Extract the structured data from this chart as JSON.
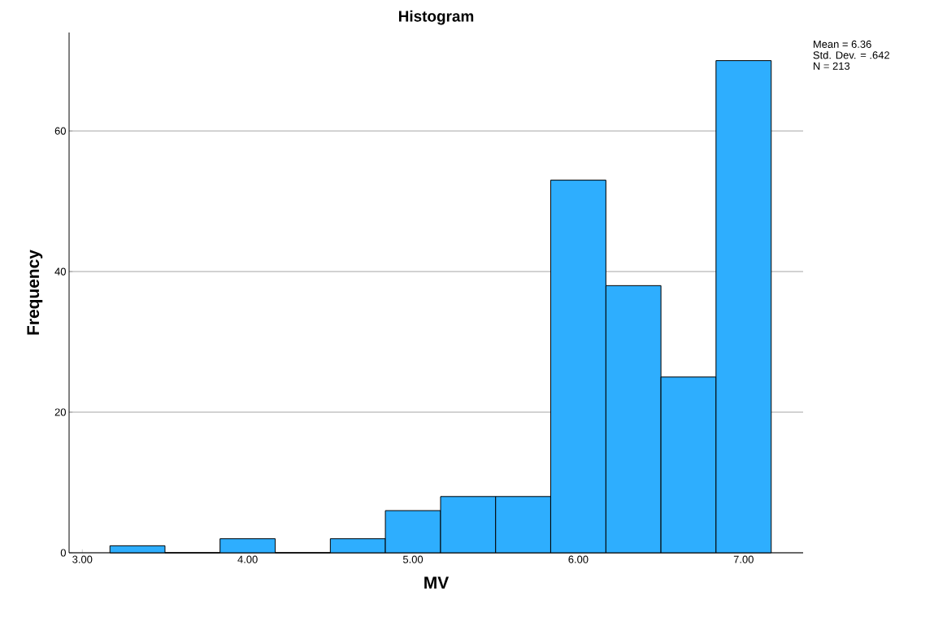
{
  "chart_data": {
    "type": "histogram",
    "title": "Histogram",
    "xlabel": "MV",
    "ylabel": "Frequency",
    "bins": [
      3.167,
      3.5,
      3.833,
      4.167,
      4.5,
      4.833,
      5.167,
      5.5,
      5.833,
      6.167,
      6.5,
      6.833,
      7.167
    ],
    "values": [
      1,
      0,
      2,
      0,
      2,
      6,
      8,
      8,
      53,
      38,
      25,
      70
    ],
    "color": "#2eaefe",
    "xlim": [
      2.92,
      7.36
    ],
    "ylim": [
      0,
      74
    ],
    "xticks": [
      {
        "value": 3,
        "label": "3.00"
      },
      {
        "value": 4,
        "label": "4.00"
      },
      {
        "value": 5,
        "label": "5.00"
      },
      {
        "value": 6,
        "label": "6.00"
      },
      {
        "value": 7,
        "label": "7.00"
      }
    ],
    "yticks": [
      0,
      20,
      40,
      60
    ],
    "grid": "y",
    "annotations": [
      "Mean = 6.36",
      "Std. Dev. = .642",
      "N = 213"
    ]
  }
}
